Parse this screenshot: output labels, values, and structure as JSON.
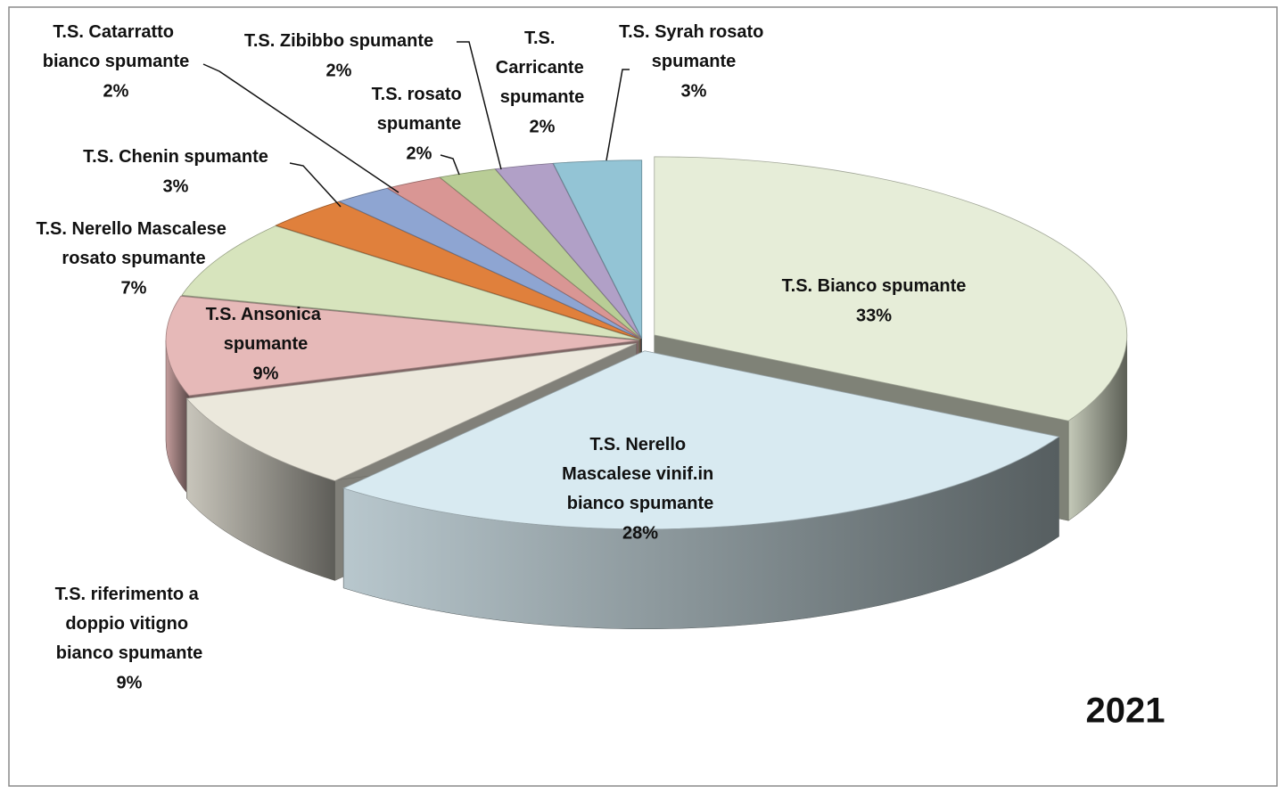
{
  "chart_data": {
    "type": "pie3d",
    "title": "2021",
    "categories": [
      "T.S. Bianco spumante",
      "T.S. Nerello Mascalese vinif.in bianco spumante",
      "T.S. riferimento a doppio vitigno bianco spumante",
      "T.S. Ansonica spumante",
      "T.S. Nerello Mascalese rosato spumante",
      "T.S. Chenin spumante",
      "T.S. Catarratto bianco spumante",
      "T.S. rosato spumante",
      "T.S. Zibibbo spumante",
      "T.S. Carricante spumante",
      "T.S. Syrah rosato spumante"
    ],
    "values": [
      33,
      28,
      9,
      9,
      7,
      3,
      2,
      2,
      2,
      2,
      3
    ],
    "value_labels": [
      "33%",
      "28%",
      "9%",
      "9%",
      "7%",
      "3%",
      "2%",
      "2%",
      "2%",
      "2%",
      "3%"
    ],
    "colors": [
      "#e6edd8",
      "#d8eaf1",
      "#ebe8dc",
      "#e6b9b8",
      "#d7e4bd",
      "#e0803c",
      "#8ea5d2",
      "#d99694",
      "#b9cd96",
      "#b1a0c7",
      "#93c4d5"
    ]
  }
}
